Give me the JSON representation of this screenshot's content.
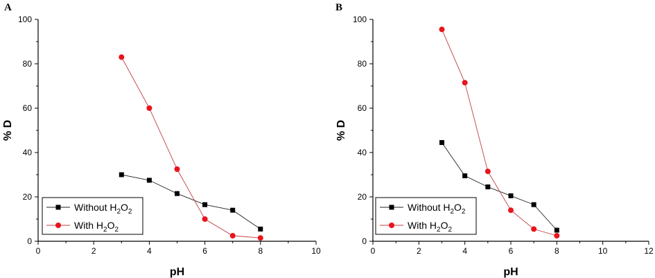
{
  "chart_data": [
    {
      "type": "line",
      "panel_label": "A",
      "xlabel": "pH",
      "ylabel": "% D",
      "xlim": [
        0,
        10
      ],
      "ylim": [
        0,
        100
      ],
      "x_ticks": [
        "0",
        "2",
        "4",
        "6",
        "8",
        "10"
      ],
      "y_ticks": [
        "0",
        "20",
        "40",
        "60",
        "80",
        "100"
      ],
      "legend_position": "bottom-left",
      "series": [
        {
          "name": "Without H2O2",
          "legend_main": "Without H",
          "legend_sub1": "2",
          "legend_mid": "O",
          "legend_sub2": "2",
          "marker": "square",
          "color": "#000000",
          "x": [
            3,
            4,
            5,
            6,
            7,
            8
          ],
          "y": [
            30,
            27.5,
            21.5,
            16.5,
            14,
            5.5
          ]
        },
        {
          "name": "With H2O2",
          "legend_main": "With H",
          "legend_sub1": "2",
          "legend_mid": "O",
          "legend_sub2": "2",
          "marker": "circle",
          "color": "#e8141b",
          "x": [
            3,
            4,
            5,
            6,
            7,
            8
          ],
          "y": [
            83,
            60,
            32.5,
            10,
            2.5,
            1.5
          ]
        }
      ]
    },
    {
      "type": "line",
      "panel_label": "B",
      "xlabel": "pH",
      "ylabel": "% D",
      "xlim": [
        0,
        12
      ],
      "ylim": [
        0,
        100
      ],
      "x_ticks": [
        "0",
        "2",
        "4",
        "6",
        "8",
        "10",
        "12"
      ],
      "y_ticks": [
        "0",
        "20",
        "40",
        "60",
        "80",
        "100"
      ],
      "legend_position": "bottom-left",
      "series": [
        {
          "name": "Without H2O2",
          "legend_main": "Without H",
          "legend_sub1": "2",
          "legend_mid": "O",
          "legend_sub2": "2",
          "marker": "square",
          "color": "#000000",
          "x": [
            3,
            4,
            5,
            6,
            7,
            8
          ],
          "y": [
            44.5,
            29.5,
            24.5,
            20.5,
            16.5,
            5
          ]
        },
        {
          "name": "With H2O2",
          "legend_main": "With H",
          "legend_sub1": "2",
          "legend_mid": "O",
          "legend_sub2": "2",
          "marker": "circle",
          "color": "#e8141b",
          "x": [
            3,
            4,
            5,
            6,
            7,
            8
          ],
          "y": [
            95.5,
            71.5,
            31.5,
            14,
            5.5,
            2.5
          ]
        }
      ]
    }
  ]
}
